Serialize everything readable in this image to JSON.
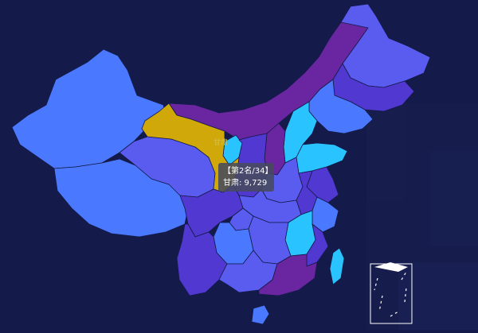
{
  "colors": {
    "background": "#141a4a",
    "highlight": "#d0a80a",
    "cyan": "#29c4ff",
    "blue": "#4a78ff",
    "periwinkle": "#5a5cf0",
    "indigo": "#5038d0",
    "purple": "#6a26a0",
    "tooltip_bg": "#46495c"
  },
  "selected_region": {
    "name": "甘肃",
    "rank_text": "【第2名/34】",
    "value_text": "甘肃: 9,729",
    "map_label": "甘肃"
  },
  "regions": [
    {
      "name": "新疆",
      "color": "blue"
    },
    {
      "name": "西藏",
      "color": "blue"
    },
    {
      "name": "青海",
      "color": "periwinkle"
    },
    {
      "name": "甘肃",
      "color": "highlight"
    },
    {
      "name": "内蒙古",
      "color": "purple"
    },
    {
      "name": "黑龙江",
      "color": "periwinkle"
    },
    {
      "name": "吉林",
      "color": "indigo"
    },
    {
      "name": "辽宁",
      "color": "blue"
    },
    {
      "name": "宁夏",
      "color": "cyan"
    },
    {
      "name": "陕西",
      "color": "indigo"
    },
    {
      "name": "山西",
      "color": "purple"
    },
    {
      "name": "河北",
      "color": "cyan"
    },
    {
      "name": "山东",
      "color": "cyan"
    },
    {
      "name": "河南",
      "color": "periwinkle"
    },
    {
      "name": "四川",
      "color": "indigo"
    },
    {
      "name": "重庆",
      "color": "periwinkle"
    },
    {
      "name": "湖北",
      "color": "periwinkle"
    },
    {
      "name": "安徽",
      "color": "indigo"
    },
    {
      "name": "江苏",
      "color": "indigo"
    },
    {
      "name": "浙江",
      "color": "blue"
    },
    {
      "name": "江西",
      "color": "cyan"
    },
    {
      "name": "湖南",
      "color": "periwinkle"
    },
    {
      "name": "云南",
      "color": "indigo"
    },
    {
      "name": "贵州",
      "color": "blue"
    },
    {
      "name": "广西",
      "color": "periwinkle"
    },
    {
      "name": "广东",
      "color": "purple"
    },
    {
      "name": "福建",
      "color": "indigo"
    },
    {
      "name": "台湾",
      "color": "cyan"
    },
    {
      "name": "海南",
      "color": "blue"
    }
  ]
}
